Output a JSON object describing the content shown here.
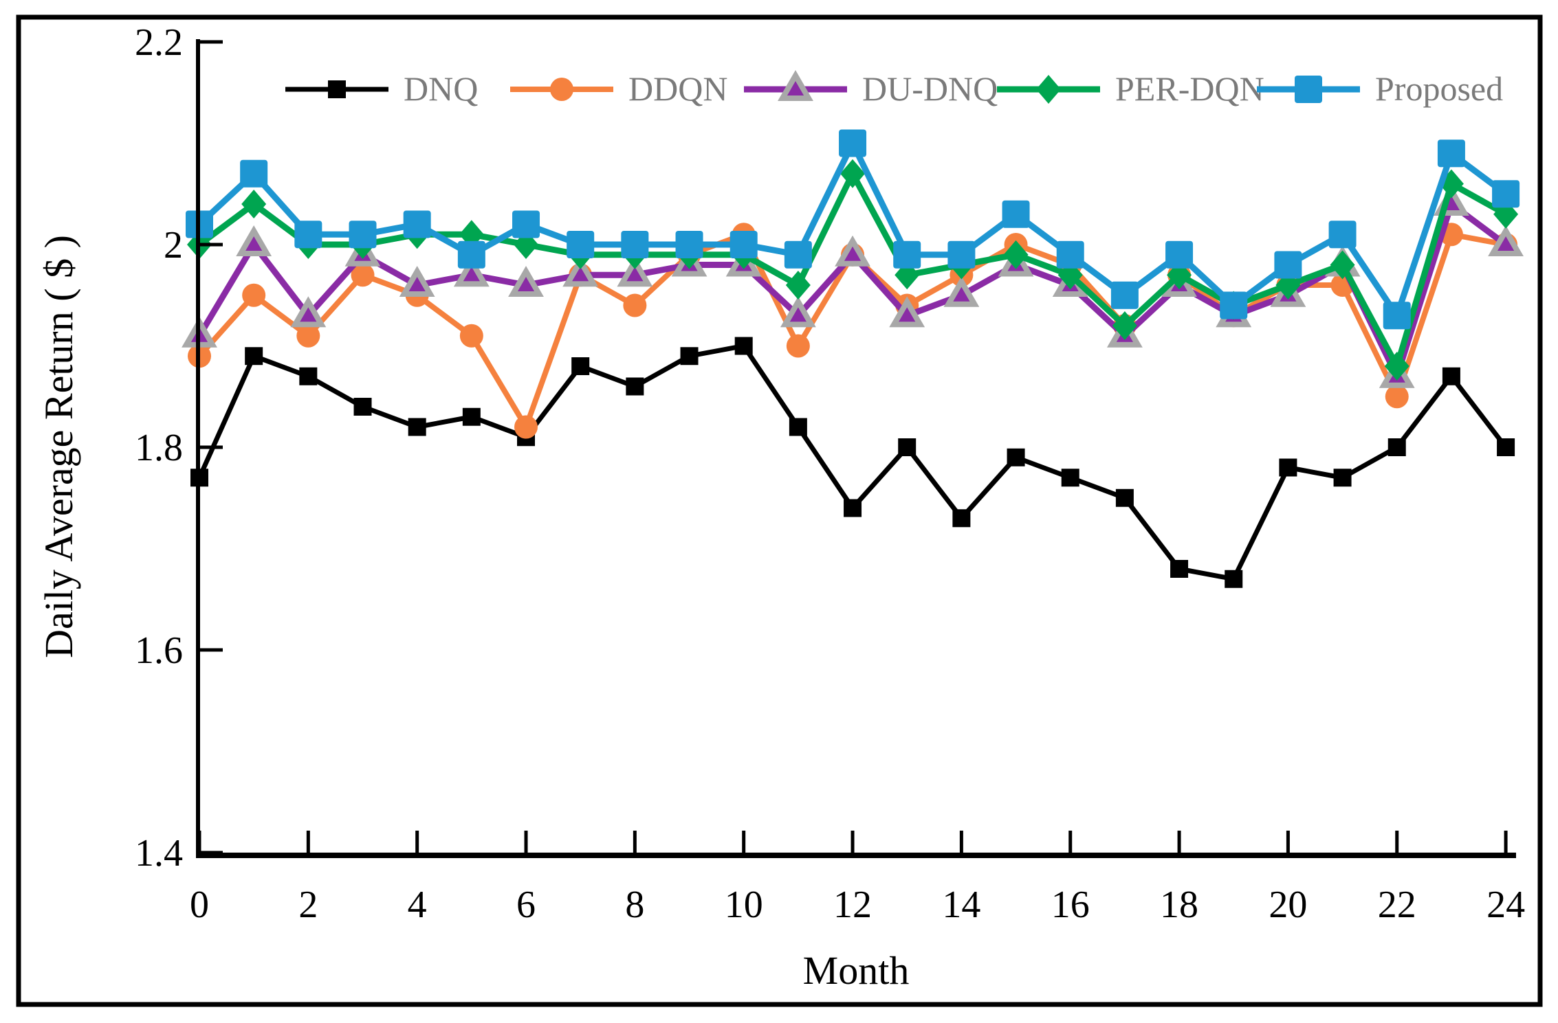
{
  "chart_data": {
    "type": "line",
    "title": "",
    "xlabel": "Month",
    "ylabel": "Daily Average Return ( $ )",
    "x": [
      0,
      1,
      2,
      3,
      4,
      5,
      6,
      7,
      8,
      9,
      10,
      11,
      12,
      13,
      14,
      15,
      16,
      17,
      18,
      19,
      20,
      21,
      22,
      23,
      24
    ],
    "xlim": [
      0,
      24
    ],
    "ylim": [
      1.4,
      2.2
    ],
    "x_tick_labels": [
      "0",
      "2",
      "4",
      "6",
      "8",
      "10",
      "12",
      "14",
      "16",
      "18",
      "20",
      "22",
      "24"
    ],
    "x_tick_values": [
      0,
      2,
      4,
      6,
      8,
      10,
      12,
      14,
      16,
      18,
      20,
      22,
      24
    ],
    "y_tick_labels": [
      "2.2",
      "2",
      "1.8",
      "1.6",
      "1.4"
    ],
    "y_tick_values": [
      2.2,
      2.0,
      1.8,
      1.6,
      1.4
    ],
    "grid": "off",
    "legend_position": "top",
    "series": [
      {
        "name": "DNQ",
        "color": "#000000",
        "marker": "square-small",
        "line_width": 7,
        "values": [
          1.77,
          1.89,
          1.87,
          1.84,
          1.82,
          1.83,
          1.81,
          1.88,
          1.86,
          1.89,
          1.9,
          1.82,
          1.74,
          1.8,
          1.73,
          1.79,
          1.77,
          1.75,
          1.68,
          1.67,
          1.78,
          1.77,
          1.8,
          1.87,
          1.8
        ]
      },
      {
        "name": "DDQN",
        "color": "#F5813E",
        "marker": "circle",
        "line_width": 8,
        "values": [
          1.89,
          1.95,
          1.91,
          1.97,
          1.95,
          1.91,
          1.82,
          1.97,
          1.94,
          1.99,
          2.01,
          1.9,
          1.99,
          1.94,
          1.97,
          2.0,
          1.98,
          1.92,
          1.97,
          1.93,
          1.96,
          1.96,
          1.85,
          2.01,
          2.0
        ]
      },
      {
        "name": "DU-DNQ",
        "color": "#8A2BA5",
        "marker": "triangle",
        "marker_edge": "#A8A8A8",
        "line_width": 9,
        "values": [
          1.91,
          2.0,
          1.93,
          1.99,
          1.96,
          1.97,
          1.96,
          1.97,
          1.97,
          1.98,
          1.98,
          1.93,
          1.99,
          1.93,
          1.95,
          1.98,
          1.96,
          1.91,
          1.96,
          1.93,
          1.95,
          1.98,
          1.87,
          2.04,
          2.0
        ]
      },
      {
        "name": "PER-DQN",
        "color": "#00A550",
        "marker": "diamond",
        "line_width": 9,
        "values": [
          2.0,
          2.04,
          2.0,
          2.0,
          2.01,
          2.01,
          2.0,
          1.99,
          1.99,
          1.99,
          1.99,
          1.96,
          2.07,
          1.97,
          1.98,
          1.99,
          1.97,
          1.92,
          1.97,
          1.94,
          1.96,
          1.98,
          1.88,
          2.06,
          2.03
        ]
      },
      {
        "name": "Proposed",
        "color": "#1E96D2",
        "marker": "square-large",
        "line_width": 9,
        "values": [
          2.02,
          2.07,
          2.01,
          2.01,
          2.02,
          1.99,
          2.02,
          2.0,
          2.0,
          2.0,
          2.0,
          1.99,
          2.1,
          1.99,
          1.99,
          2.03,
          1.99,
          1.95,
          1.99,
          1.94,
          1.98,
          2.01,
          1.93,
          2.09,
          2.05
        ]
      }
    ]
  }
}
